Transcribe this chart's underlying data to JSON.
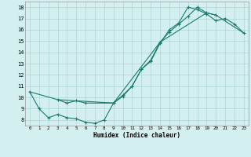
{
  "xlabel": "Humidex (Indice chaleur)",
  "bg_color": "#d4efef",
  "grid_color": "#aed4d4",
  "line_color": "#1a7a6e",
  "xlim": [
    -0.5,
    23.5
  ],
  "ylim": [
    7.5,
    18.5
  ],
  "yticks": [
    8,
    9,
    10,
    11,
    12,
    13,
    14,
    15,
    16,
    17,
    18
  ],
  "xticks": [
    0,
    1,
    2,
    3,
    4,
    5,
    6,
    7,
    8,
    9,
    10,
    11,
    12,
    13,
    14,
    15,
    16,
    17,
    18,
    19,
    20,
    21,
    22,
    23
  ],
  "line1_x": [
    0,
    1,
    2,
    3,
    4,
    5,
    6,
    7,
    8,
    9,
    10,
    11,
    12,
    13,
    14,
    15,
    16,
    17,
    18,
    19,
    20,
    21,
    22,
    23
  ],
  "line1_y": [
    10.5,
    9.0,
    8.2,
    8.5,
    8.2,
    8.1,
    7.8,
    7.7,
    8.0,
    9.5,
    10.1,
    11.0,
    12.5,
    13.2,
    14.8,
    16.0,
    16.6,
    18.0,
    17.8,
    17.4,
    16.8,
    17.0,
    16.5,
    15.7
  ],
  "line2_x": [
    3,
    4,
    5,
    6,
    9,
    10,
    11,
    12,
    13,
    14,
    15,
    16,
    17,
    18,
    19,
    20
  ],
  "line2_y": [
    9.8,
    9.5,
    9.7,
    9.5,
    9.5,
    10.2,
    11.0,
    12.5,
    13.3,
    14.9,
    15.8,
    16.5,
    17.2,
    18.0,
    17.5,
    17.3
  ],
  "line3_x": [
    0,
    3,
    9,
    14,
    19,
    20,
    23
  ],
  "line3_y": [
    10.5,
    9.8,
    9.5,
    14.9,
    17.5,
    17.3,
    15.7
  ]
}
